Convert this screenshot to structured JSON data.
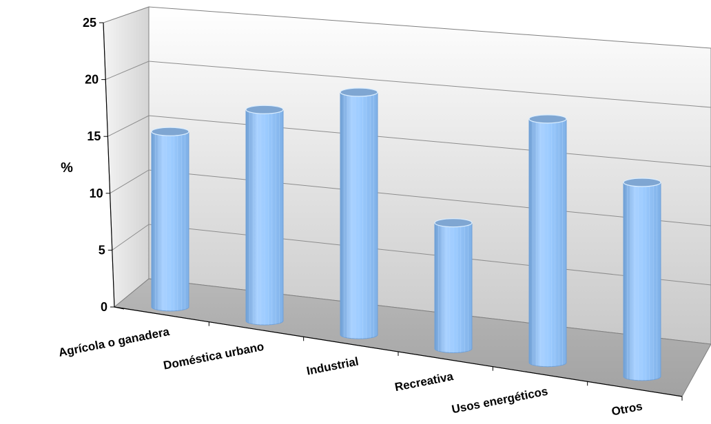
{
  "chart_data": {
    "type": "bar",
    "style": "3d-cylinder",
    "ylabel": "%",
    "xlabel": "",
    "ylim": [
      0,
      25
    ],
    "yticks": [
      0,
      5,
      10,
      15,
      20,
      25
    ],
    "grid": true,
    "legend": "none",
    "categories": [
      "Agrícola o ganadera",
      "Doméstica urbano",
      "Industrial",
      "Recreativa",
      "Usos energéticos",
      "Otros"
    ],
    "values": [
      16,
      19,
      21.5,
      11,
      21,
      16.5
    ],
    "colors": {
      "bar": "#99ccff",
      "bar_dark": "#5f93cc",
      "bar_top": "#7fa6d2",
      "wall": "#d9d9d9",
      "floor": "#a6a6a6"
    }
  }
}
